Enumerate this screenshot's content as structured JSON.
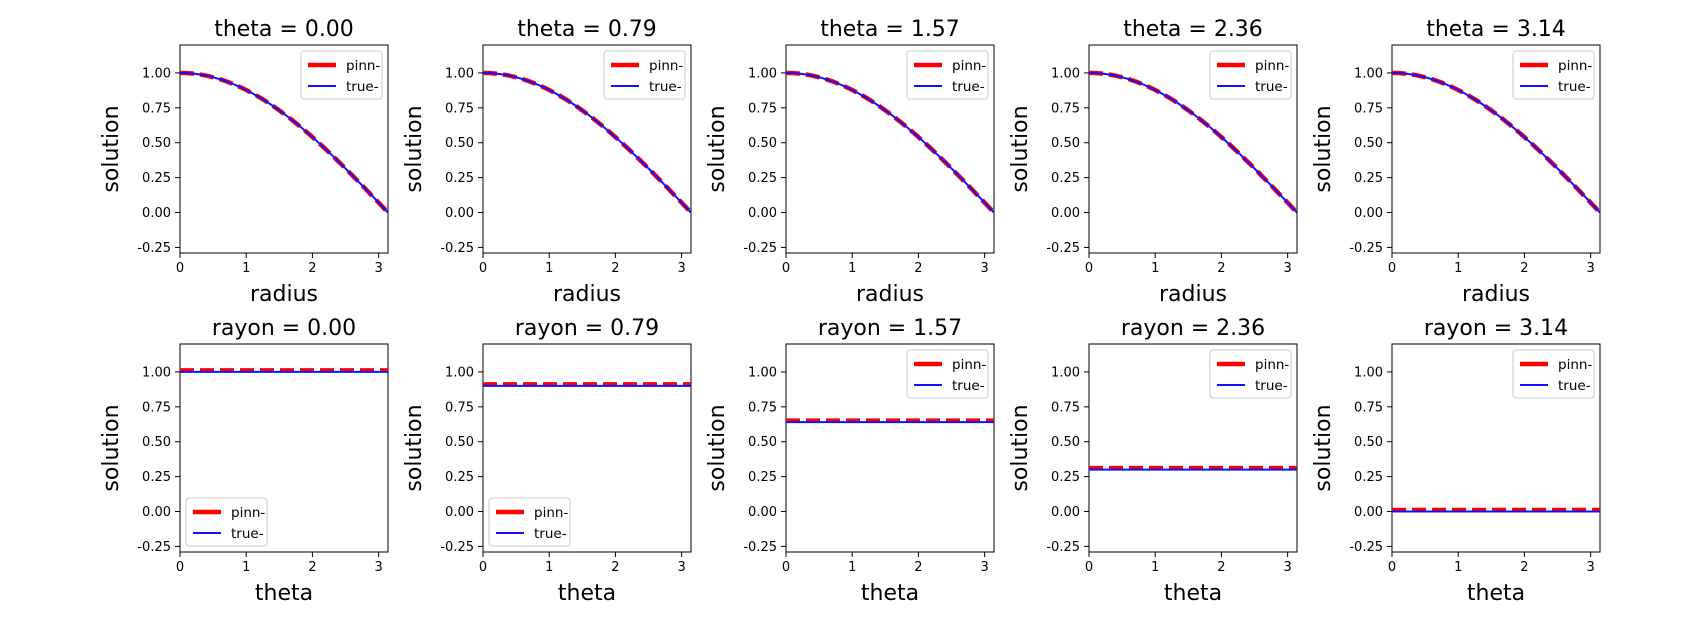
{
  "colors": {
    "pinn": "#ff0000",
    "true": "#1010ff",
    "legend_border": "#cccccc"
  },
  "legend_labels": [
    "pinn-",
    "true-"
  ],
  "chart_data": [
    {
      "type": "line",
      "title": "theta = 0.00",
      "xlabel": "radius",
      "ylabel": "solution",
      "xlim": [
        0,
        3.1416
      ],
      "ylim": [
        -0.29,
        1.2
      ],
      "xticks": [
        "0",
        "1",
        "2",
        "3"
      ],
      "yticks": [
        "-0.25",
        "0.00",
        "0.25",
        "0.50",
        "0.75",
        "1.00"
      ],
      "legend": "upper right",
      "curve": "cos_half",
      "series": [
        {
          "name": "pinn-",
          "style": "dashed"
        },
        {
          "name": "true-",
          "style": "solid"
        }
      ]
    },
    {
      "type": "line",
      "title": "theta = 0.79",
      "xlabel": "radius",
      "ylabel": "solution",
      "xlim": [
        0,
        3.1416
      ],
      "ylim": [
        -0.29,
        1.2
      ],
      "xticks": [
        "0",
        "1",
        "2",
        "3"
      ],
      "yticks": [
        "-0.25",
        "0.00",
        "0.25",
        "0.50",
        "0.75",
        "1.00"
      ],
      "legend": "upper right",
      "curve": "cos_half",
      "series": [
        {
          "name": "pinn-",
          "style": "dashed"
        },
        {
          "name": "true-",
          "style": "solid"
        }
      ]
    },
    {
      "type": "line",
      "title": "theta = 1.57",
      "xlabel": "radius",
      "ylabel": "solution",
      "xlim": [
        0,
        3.1416
      ],
      "ylim": [
        -0.29,
        1.2
      ],
      "xticks": [
        "0",
        "1",
        "2",
        "3"
      ],
      "yticks": [
        "-0.25",
        "0.00",
        "0.25",
        "0.50",
        "0.75",
        "1.00"
      ],
      "legend": "upper right",
      "curve": "cos_half",
      "series": [
        {
          "name": "pinn-",
          "style": "dashed"
        },
        {
          "name": "true-",
          "style": "solid"
        }
      ]
    },
    {
      "type": "line",
      "title": "theta = 2.36",
      "xlabel": "radius",
      "ylabel": "solution",
      "xlim": [
        0,
        3.1416
      ],
      "ylim": [
        -0.29,
        1.2
      ],
      "xticks": [
        "0",
        "1",
        "2",
        "3"
      ],
      "yticks": [
        "-0.25",
        "0.00",
        "0.25",
        "0.50",
        "0.75",
        "1.00"
      ],
      "legend": "upper right",
      "curve": "cos_half",
      "series": [
        {
          "name": "pinn-",
          "style": "dashed"
        },
        {
          "name": "true-",
          "style": "solid"
        }
      ]
    },
    {
      "type": "line",
      "title": "theta = 3.14",
      "xlabel": "radius",
      "ylabel": "solution",
      "xlim": [
        0,
        3.1416
      ],
      "ylim": [
        -0.29,
        1.2
      ],
      "xticks": [
        "0",
        "1",
        "2",
        "3"
      ],
      "yticks": [
        "-0.25",
        "0.00",
        "0.25",
        "0.50",
        "0.75",
        "1.00"
      ],
      "legend": "upper right",
      "curve": "cos_half",
      "series": [
        {
          "name": "pinn-",
          "style": "dashed"
        },
        {
          "name": "true-",
          "style": "solid"
        }
      ]
    },
    {
      "type": "line",
      "title": "rayon = 0.00",
      "xlabel": "theta",
      "ylabel": "solution",
      "xlim": [
        0,
        3.1416
      ],
      "ylim": [
        -0.29,
        1.2
      ],
      "xticks": [
        "0",
        "1",
        "2",
        "3"
      ],
      "yticks": [
        "-0.25",
        "0.00",
        "0.25",
        "0.50",
        "0.75",
        "1.00"
      ],
      "legend": "lower left",
      "curve": "constant",
      "value": 1.0,
      "series": [
        {
          "name": "pinn-",
          "style": "dashed"
        },
        {
          "name": "true-",
          "style": "solid"
        }
      ]
    },
    {
      "type": "line",
      "title": "rayon = 0.79",
      "xlabel": "theta",
      "ylabel": "solution",
      "xlim": [
        0,
        3.1416
      ],
      "ylim": [
        -0.29,
        1.2
      ],
      "xticks": [
        "0",
        "1",
        "2",
        "3"
      ],
      "yticks": [
        "-0.25",
        "0.00",
        "0.25",
        "0.50",
        "0.75",
        "1.00"
      ],
      "legend": "lower left",
      "curve": "constant",
      "value": 0.9,
      "series": [
        {
          "name": "pinn-",
          "style": "dashed"
        },
        {
          "name": "true-",
          "style": "solid"
        }
      ]
    },
    {
      "type": "line",
      "title": "rayon = 1.57",
      "xlabel": "theta",
      "ylabel": "solution",
      "xlim": [
        0,
        3.1416
      ],
      "ylim": [
        -0.29,
        1.2
      ],
      "xticks": [
        "0",
        "1",
        "2",
        "3"
      ],
      "yticks": [
        "-0.25",
        "0.00",
        "0.25",
        "0.50",
        "0.75",
        "1.00"
      ],
      "legend": "upper right",
      "curve": "constant",
      "value": 0.64,
      "series": [
        {
          "name": "pinn-",
          "style": "dashed"
        },
        {
          "name": "true-",
          "style": "solid"
        }
      ]
    },
    {
      "type": "line",
      "title": "rayon = 2.36",
      "xlabel": "theta",
      "ylabel": "solution",
      "xlim": [
        0,
        3.1416
      ],
      "ylim": [
        -0.29,
        1.2
      ],
      "xticks": [
        "0",
        "1",
        "2",
        "3"
      ],
      "yticks": [
        "-0.25",
        "0.00",
        "0.25",
        "0.50",
        "0.75",
        "1.00"
      ],
      "legend": "upper right",
      "curve": "constant",
      "value": 0.3,
      "series": [
        {
          "name": "pinn-",
          "style": "dashed"
        },
        {
          "name": "true-",
          "style": "solid"
        }
      ]
    },
    {
      "type": "line",
      "title": "rayon = 3.14",
      "xlabel": "theta",
      "ylabel": "solution",
      "xlim": [
        0,
        3.1416
      ],
      "ylim": [
        -0.29,
        1.2
      ],
      "xticks": [
        "0",
        "1",
        "2",
        "3"
      ],
      "yticks": [
        "-0.25",
        "0.00",
        "0.25",
        "0.50",
        "0.75",
        "1.00"
      ],
      "legend": "upper right",
      "curve": "constant",
      "value": 0.0,
      "series": [
        {
          "name": "pinn-",
          "style": "dashed"
        },
        {
          "name": "true-",
          "style": "solid"
        }
      ]
    }
  ]
}
